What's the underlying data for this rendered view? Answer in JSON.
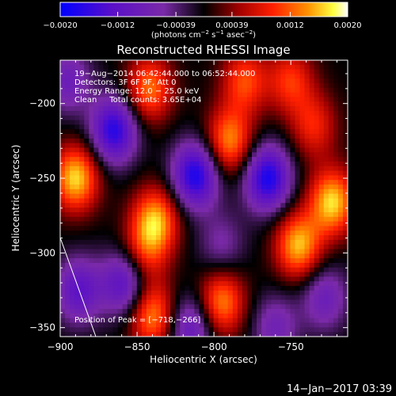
{
  "chart_data": {
    "type": "heatmap",
    "title": "Reconstructed RHESSI Image",
    "xlabel": "Heliocentric X (arcsec)",
    "ylabel": "Heliocentric Y (arcsec)",
    "xlim": [
      -900,
      -713
    ],
    "ylim": [
      -356,
      -171
    ],
    "x_ticks": [
      -900,
      -850,
      -800,
      -750
    ],
    "x_tick_labels": [
      "−900",
      "−850",
      "−800",
      "−750"
    ],
    "y_ticks": [
      -200,
      -250,
      -300,
      -350
    ],
    "y_tick_labels": [
      "−200",
      "−250",
      "−300",
      "−350"
    ],
    "annotations": [
      "19−Aug−2014 06:42:44.000 to 06:52:44.000",
      "Detectors: 3F 6F 9F, Att 0",
      "Energy Range: 12.0 − 25.0 keV",
      "Clean     Total counts: 3.65E+04"
    ],
    "peak_label": "Position of Peak = [−718,−266]",
    "colorbar": {
      "min": -0.002,
      "max": 0.002,
      "tick_values": [
        -0.002,
        -0.0012,
        -0.00039,
        0.00039,
        0.0012,
        0.002
      ],
      "tick_labels": [
        "−0.0020",
        "−0.0012",
        "−0.00039",
        "0.00039",
        "0.0012",
        "0.0020"
      ],
      "unit_prefix": "(photons cm",
      "unit_exp1": "−2",
      "unit_mid": " s",
      "unit_exp2": "−1",
      "unit_mid2": " asec",
      "unit_exp3": "−2",
      "unit_suffix": ")"
    },
    "colormap": [
      "#0000ff",
      "#5a10c8",
      "#7a2aa8",
      "#000000",
      "#a00000",
      "#ff2000",
      "#ff9000",
      "#ffff40",
      "#ffffff"
    ],
    "peaks": [
      {
        "x": -890,
        "y": -250,
        "v": 0.0017
      },
      {
        "x": -842,
        "y": -190,
        "v": 0.0013
      },
      {
        "x": -838,
        "y": -278,
        "v": 0.0015
      },
      {
        "x": -840,
        "y": -342,
        "v": 0.0014
      },
      {
        "x": -790,
        "y": -225,
        "v": 0.0014
      },
      {
        "x": -795,
        "y": -333,
        "v": 0.0014
      },
      {
        "x": -745,
        "y": -295,
        "v": 0.0016
      },
      {
        "x": -735,
        "y": -215,
        "v": 0.0009
      },
      {
        "x": -723,
        "y": -266,
        "v": 0.0017
      },
      {
        "x": -780,
        "y": -185,
        "v": 0.0011
      },
      {
        "x": -750,
        "y": -185,
        "v": 0.001
      },
      {
        "x": -845,
        "y": -300,
        "v": 0.0009
      }
    ],
    "troughs": [
      {
        "x": -865,
        "y": -218,
        "v": -0.0017
      },
      {
        "x": -858,
        "y": -320,
        "v": -0.0013
      },
      {
        "x": -812,
        "y": -248,
        "v": -0.0018
      },
      {
        "x": -815,
        "y": -350,
        "v": -0.0011
      },
      {
        "x": -765,
        "y": -250,
        "v": -0.0018
      },
      {
        "x": -728,
        "y": -330,
        "v": -0.0009
      },
      {
        "x": -895,
        "y": -185,
        "v": -0.0009
      },
      {
        "x": -888,
        "y": -325,
        "v": -0.0012
      },
      {
        "x": -795,
        "y": -295,
        "v": -0.0006
      },
      {
        "x": -760,
        "y": -350,
        "v": -0.0008
      }
    ]
  },
  "footer": {
    "timestamp": "14−Jan−2017 03:39"
  }
}
